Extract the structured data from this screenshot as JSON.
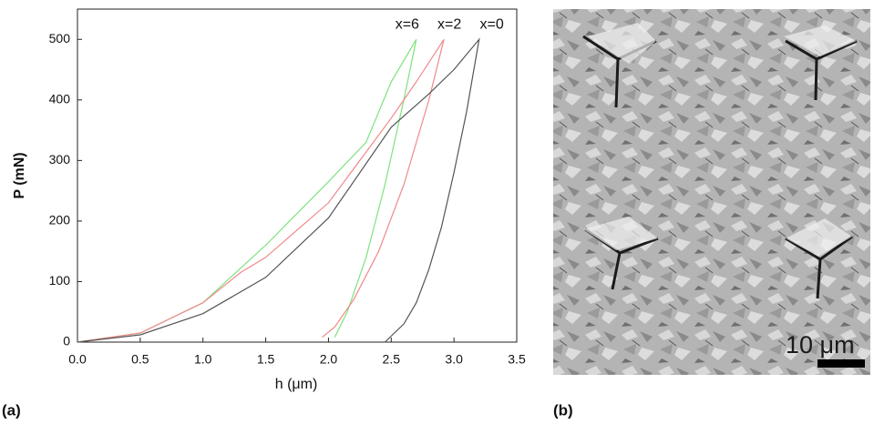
{
  "chart_data": {
    "type": "line",
    "xlabel": "h (μm)",
    "ylabel": "P (mN)",
    "xlim": [
      0,
      3.5
    ],
    "ylim": [
      0,
      550
    ],
    "xticks": [
      {
        "value": 0,
        "label": "0.0"
      },
      0.5,
      {
        "value": 1,
        "label": "1.0"
      },
      1.5,
      {
        "value": 2,
        "label": "2.0"
      },
      2.5,
      {
        "value": 3,
        "label": "3.0"
      },
      3.5
    ],
    "yticks": [
      0,
      100,
      200,
      300,
      400,
      500
    ],
    "series": [
      {
        "name": "x=6",
        "color": "#7fe27f",
        "x": [
          0,
          0.5,
          1.0,
          1.5,
          2.0,
          2.3,
          2.5,
          2.7,
          2.6,
          2.45,
          2.3,
          2.15,
          2.05
        ],
        "values": [
          0,
          15,
          65,
          160,
          265,
          330,
          430,
          500,
          400,
          260,
          140,
          50,
          8
        ]
      },
      {
        "name": "x=2",
        "color": "#f08a8a",
        "x": [
          0,
          0.5,
          1.0,
          1.3,
          1.5,
          2.0,
          2.5,
          2.7,
          2.92,
          2.8,
          2.6,
          2.4,
          2.2,
          2.05,
          1.95
        ],
        "values": [
          0,
          15,
          65,
          115,
          140,
          230,
          370,
          430,
          500,
          400,
          260,
          150,
          70,
          25,
          8
        ]
      },
      {
        "name": "x=0",
        "color": "#555555",
        "x": [
          0,
          0.5,
          1.0,
          1.5,
          2.0,
          2.5,
          2.8,
          3.0,
          3.2,
          3.1,
          3.0,
          2.9,
          2.8,
          2.7,
          2.6,
          2.45
        ],
        "values": [
          0,
          12,
          47,
          107,
          205,
          355,
          410,
          450,
          500,
          380,
          280,
          190,
          120,
          65,
          30,
          0
        ]
      }
    ]
  },
  "panel_labels": [
    "(a)",
    "(b)"
  ],
  "image": {
    "scale_bar_label": "10 μm"
  }
}
